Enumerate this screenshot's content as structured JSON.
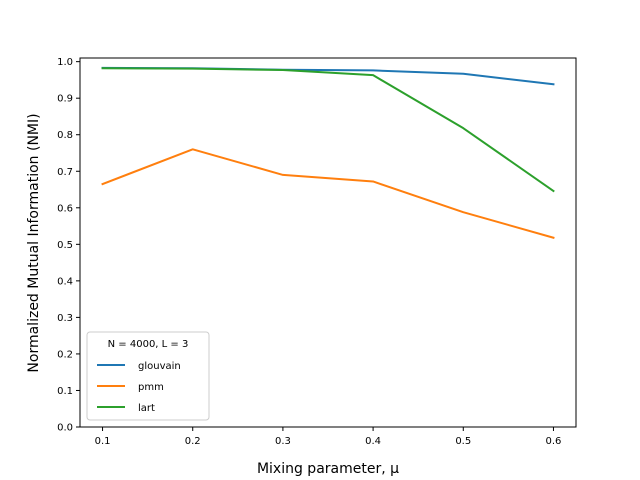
{
  "chart_data": {
    "type": "line",
    "title": "",
    "xlabel": "Mixing parameter, μ",
    "ylabel": "Normalized Mutual Information (NMI)",
    "x": [
      0.1,
      0.2,
      0.3,
      0.4,
      0.5,
      0.6
    ],
    "xlim": [
      0.075,
      0.625
    ],
    "ylim": [
      0.0,
      1.01
    ],
    "xticks": [
      "0.1",
      "0.2",
      "0.3",
      "0.4",
      "0.5",
      "0.6"
    ],
    "yticks": [
      "0.0",
      "0.1",
      "0.2",
      "0.3",
      "0.4",
      "0.5",
      "0.6",
      "0.7",
      "0.8",
      "0.9",
      "1.0"
    ],
    "legend": {
      "title": "N = 4000, L = 3",
      "placement": "lower-left"
    },
    "grid": false,
    "series": [
      {
        "name": "glouvain",
        "color": "#1f77b4",
        "values": [
          0.983,
          0.982,
          0.978,
          0.976,
          0.967,
          0.938
        ]
      },
      {
        "name": "pmm",
        "color": "#ff7f0e",
        "values": [
          0.665,
          0.76,
          0.69,
          0.672,
          0.588,
          0.518
        ]
      },
      {
        "name": "lart",
        "color": "#2ca02c",
        "values": [
          0.982,
          0.981,
          0.977,
          0.963,
          0.818,
          0.646
        ]
      }
    ]
  }
}
